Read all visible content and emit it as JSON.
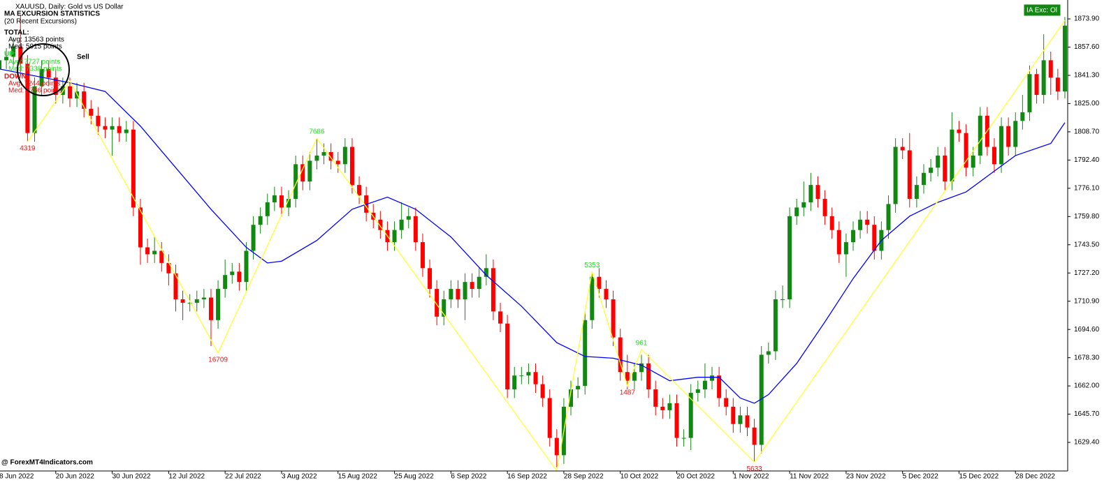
{
  "header": "XAUUSD, Daily:  Gold vs US Dollar",
  "stats": {
    "title": "MA EXCURSION STATISTICS",
    "subtitle": "(20 Recent Excursions)",
    "total_label": "TOTAL:",
    "total_avg": "Avg: 13563 points",
    "total_med": "Med: 5915 points",
    "up_label": "UP:",
    "up_avg": "Avg: 7727 points",
    "up_med": "Med: 7338 points",
    "down_label": "DOWN:",
    "down_avg": "Avg: 7244 points",
    "down_med": "Med: 5766 points"
  },
  "signal": "Sell",
  "button": "IA Exc: Ol",
  "watermark": "@ ForexMT4Indicators.com",
  "chart_data": {
    "type": "candlestick",
    "up_color": "#118811",
    "down_color": "#ff0000",
    "candles": {
      "open": [
        1845,
        1850,
        1852,
        1858,
        1848,
        1808,
        1835,
        1845,
        1840,
        1830,
        1835,
        1828,
        1832,
        1822,
        1818,
        1812,
        1810,
        1812,
        1808,
        1810,
        1765,
        1742,
        1738,
        1740,
        1733,
        1727,
        1712,
        1710,
        1710,
        1712,
        1713,
        1700,
        1718,
        1726,
        1728,
        1722,
        1740,
        1755,
        1760,
        1768,
        1772,
        1765,
        1770,
        1790,
        1780,
        1792,
        1795,
        1797,
        1792,
        1790,
        1800,
        1778,
        1772,
        1762,
        1758,
        1752,
        1745,
        1752,
        1758,
        1760,
        1745,
        1730,
        1718,
        1702,
        1712,
        1718,
        1712,
        1722,
        1718,
        1725,
        1730,
        1705,
        1698,
        1660,
        1668,
        1668,
        1670,
        1663,
        1655,
        1632,
        1622,
        1650,
        1660,
        1662,
        1700,
        1725,
        1718,
        1712,
        1690,
        1670,
        1665,
        1670,
        1675,
        1660,
        1650,
        1648,
        1652,
        1632,
        1632,
        1658,
        1660,
        1665,
        1668,
        1655,
        1650,
        1640,
        1645,
        1638,
        1628,
        1680,
        1682,
        1712,
        1712,
        1760,
        1765,
        1768,
        1778,
        1770,
        1760,
        1752,
        1738,
        1745,
        1752,
        1758,
        1755,
        1740,
        1752,
        1767,
        1800,
        1798,
        1770,
        1778,
        1785,
        1788,
        1795,
        1780,
        1810,
        1808,
        1788,
        1795,
        1818,
        1800,
        1790,
        1812,
        1800,
        1815,
        1820,
        1842,
        1830,
        1850,
        1840,
        1832
      ],
      "high": [
        1855,
        1857,
        1863,
        1876,
        1853,
        1840,
        1850,
        1850,
        1845,
        1840,
        1840,
        1837,
        1837,
        1827,
        1823,
        1817,
        1817,
        1817,
        1815,
        1815,
        1770,
        1747,
        1748,
        1745,
        1738,
        1732,
        1717,
        1715,
        1717,
        1718,
        1718,
        1723,
        1735,
        1733,
        1733,
        1745,
        1760,
        1765,
        1773,
        1777,
        1777,
        1775,
        1795,
        1795,
        1797,
        1805,
        1802,
        1802,
        1797,
        1805,
        1805,
        1783,
        1777,
        1767,
        1763,
        1757,
        1757,
        1768,
        1765,
        1765,
        1750,
        1735,
        1723,
        1717,
        1723,
        1723,
        1727,
        1727,
        1730,
        1738,
        1735,
        1710,
        1703,
        1673,
        1673,
        1675,
        1675,
        1668,
        1660,
        1637,
        1655,
        1665,
        1667,
        1705,
        1728,
        1730,
        1723,
        1717,
        1695,
        1680,
        1675,
        1680,
        1680,
        1665,
        1655,
        1657,
        1657,
        1637,
        1663,
        1665,
        1675,
        1673,
        1673,
        1660,
        1655,
        1650,
        1650,
        1643,
        1685,
        1687,
        1717,
        1720,
        1765,
        1770,
        1780,
        1785,
        1783,
        1775,
        1765,
        1757,
        1750,
        1757,
        1763,
        1763,
        1760,
        1757,
        1772,
        1805,
        1805,
        1808,
        1783,
        1790,
        1793,
        1800,
        1800,
        1820,
        1815,
        1813,
        1800,
        1823,
        1823,
        1805,
        1817,
        1817,
        1820,
        1830,
        1847,
        1845,
        1865,
        1855,
        1845,
        1875
      ],
      "low": [
        1840,
        1845,
        1847,
        1843,
        1803,
        1803,
        1830,
        1835,
        1825,
        1825,
        1823,
        1823,
        1817,
        1813,
        1807,
        1805,
        1795,
        1803,
        1803,
        1760,
        1732,
        1733,
        1733,
        1728,
        1720,
        1705,
        1700,
        1705,
        1705,
        1707,
        1685,
        1695,
        1713,
        1721,
        1717,
        1717,
        1735,
        1750,
        1755,
        1763,
        1760,
        1760,
        1765,
        1775,
        1775,
        1787,
        1790,
        1787,
        1785,
        1785,
        1773,
        1767,
        1757,
        1753,
        1747,
        1740,
        1740,
        1747,
        1753,
        1740,
        1725,
        1713,
        1697,
        1697,
        1707,
        1707,
        1700,
        1713,
        1713,
        1720,
        1700,
        1693,
        1655,
        1655,
        1663,
        1663,
        1658,
        1650,
        1627,
        1615,
        1617,
        1645,
        1655,
        1657,
        1695,
        1713,
        1707,
        1685,
        1665,
        1660,
        1660,
        1665,
        1655,
        1645,
        1643,
        1643,
        1627,
        1627,
        1625,
        1653,
        1655,
        1660,
        1650,
        1645,
        1635,
        1635,
        1633,
        1618,
        1623,
        1675,
        1677,
        1707,
        1707,
        1755,
        1760,
        1763,
        1765,
        1755,
        1747,
        1733,
        1725,
        1740,
        1747,
        1750,
        1735,
        1735,
        1747,
        1762,
        1793,
        1765,
        1765,
        1773,
        1780,
        1783,
        1775,
        1775,
        1803,
        1783,
        1783,
        1790,
        1795,
        1785,
        1785,
        1795,
        1795,
        1810,
        1815,
        1825,
        1825,
        1830,
        1827,
        1828
      ],
      "close": [
        1850,
        1852,
        1858,
        1848,
        1808,
        1835,
        1845,
        1840,
        1830,
        1835,
        1828,
        1832,
        1822,
        1818,
        1812,
        1810,
        1812,
        1808,
        1810,
        1765,
        1742,
        1738,
        1740,
        1733,
        1727,
        1712,
        1710,
        1710,
        1712,
        1713,
        1700,
        1718,
        1726,
        1728,
        1722,
        1740,
        1755,
        1760,
        1768,
        1772,
        1765,
        1770,
        1790,
        1780,
        1792,
        1795,
        1797,
        1792,
        1790,
        1800,
        1778,
        1772,
        1762,
        1758,
        1752,
        1745,
        1752,
        1758,
        1760,
        1745,
        1730,
        1718,
        1702,
        1712,
        1718,
        1712,
        1722,
        1718,
        1725,
        1730,
        1705,
        1698,
        1660,
        1668,
        1668,
        1670,
        1663,
        1655,
        1632,
        1622,
        1650,
        1660,
        1662,
        1700,
        1725,
        1718,
        1712,
        1690,
        1670,
        1665,
        1670,
        1675,
        1660,
        1650,
        1648,
        1652,
        1632,
        1632,
        1658,
        1660,
        1665,
        1668,
        1655,
        1650,
        1640,
        1645,
        1638,
        1628,
        1680,
        1682,
        1712,
        1712,
        1760,
        1765,
        1768,
        1778,
        1770,
        1760,
        1752,
        1738,
        1745,
        1752,
        1758,
        1755,
        1740,
        1752,
        1767,
        1800,
        1798,
        1770,
        1778,
        1785,
        1788,
        1795,
        1780,
        1810,
        1808,
        1788,
        1795,
        1818,
        1800,
        1790,
        1812,
        1800,
        1815,
        1820,
        1842,
        1830,
        1850,
        1840,
        1832,
        1870
      ]
    },
    "ma": {
      "color": "#0000ff",
      "x": [
        0,
        10,
        15,
        20,
        25,
        30,
        35,
        38,
        40,
        45,
        50,
        55,
        59,
        64,
        69,
        74,
        79,
        83,
        87,
        91,
        95,
        99,
        102,
        105,
        107,
        109,
        113,
        117,
        121,
        125,
        129,
        133,
        137,
        141,
        144,
        149,
        151
      ],
      "values": [
        1845,
        1837,
        1832,
        1812,
        1788,
        1764,
        1742,
        1733,
        1734,
        1746,
        1764,
        1771,
        1764,
        1748,
        1726,
        1708,
        1687,
        1679,
        1678,
        1674,
        1665,
        1667,
        1667,
        1655,
        1652,
        1657,
        1675,
        1699,
        1724,
        1746,
        1760,
        1768,
        1774,
        1786,
        1795,
        1802,
        1814
      ]
    },
    "zigzag": {
      "color": "#ffff33",
      "high_label_color": "#22dd22",
      "low_label_color": "#ee1111",
      "x": [
        4,
        10,
        31,
        45,
        79,
        84,
        89,
        91,
        107,
        151
      ],
      "values": [
        1803,
        1838,
        1681,
        1805,
        1613,
        1728,
        1662,
        1683,
        1618,
        1873
      ],
      "labels": [
        "4319",
        null,
        "16709",
        "7686",
        null,
        "5353",
        "1487",
        "961",
        "5633",
        null
      ]
    },
    "xlim": [
      0.1,
      151.4
    ],
    "xticks": [
      {
        "value": 0,
        "label": "8 Jun 2022"
      },
      {
        "value": 8,
        "label": "20 Jun 2022"
      },
      {
        "value": 16,
        "label": "30 Jun 2022"
      },
      {
        "value": 24,
        "label": "12 Jul 2022"
      },
      {
        "value": 32,
        "label": "22 Jul 2022"
      },
      {
        "value": 40,
        "label": "3 Aug 2022"
      },
      {
        "value": 48,
        "label": "15 Aug 2022"
      },
      {
        "value": 56,
        "label": "25 Aug 2022"
      },
      {
        "value": 64,
        "label": "6 Sep 2022"
      },
      {
        "value": 72,
        "label": "16 Sep 2022"
      },
      {
        "value": 80,
        "label": "28 Sep 2022"
      },
      {
        "value": 88,
        "label": "10 Oct 2022"
      },
      {
        "value": 96,
        "label": "20 Oct 2022"
      },
      {
        "value": 104,
        "label": "1 Nov 2022"
      },
      {
        "value": 112,
        "label": "11 Nov 2022"
      },
      {
        "value": 120,
        "label": "23 Nov 2022"
      },
      {
        "value": 128,
        "label": "5 Dec 2022"
      },
      {
        "value": 136,
        "label": "15 Dec 2022"
      },
      {
        "value": 144,
        "label": "28 Dec 2022"
      }
    ],
    "ylim": [
      1612.9,
      1884.8
    ],
    "yticks": [
      {
        "value": 1873.9,
        "label": "1873.90"
      },
      {
        "value": 1857.6,
        "label": "1857.60"
      },
      {
        "value": 1841.3,
        "label": "1841.30"
      },
      {
        "value": 1825,
        "label": "1825.00"
      },
      {
        "value": 1808.7,
        "label": "1808.70"
      },
      {
        "value": 1792.4,
        "label": "1792.40"
      },
      {
        "value": 1776.1,
        "label": "1776.10"
      },
      {
        "value": 1759.8,
        "label": "1759.80"
      },
      {
        "value": 1743.5,
        "label": "1743.50"
      },
      {
        "value": 1727.2,
        "label": "1727.20"
      },
      {
        "value": 1710.9,
        "label": "1710.90"
      },
      {
        "value": 1694.6,
        "label": "1694.60"
      },
      {
        "value": 1678.3,
        "label": "1678.30"
      },
      {
        "value": 1662,
        "label": "1662.00"
      },
      {
        "value": 1645.7,
        "label": "1645.70"
      },
      {
        "value": 1629.4,
        "label": "1629.40"
      }
    ]
  }
}
